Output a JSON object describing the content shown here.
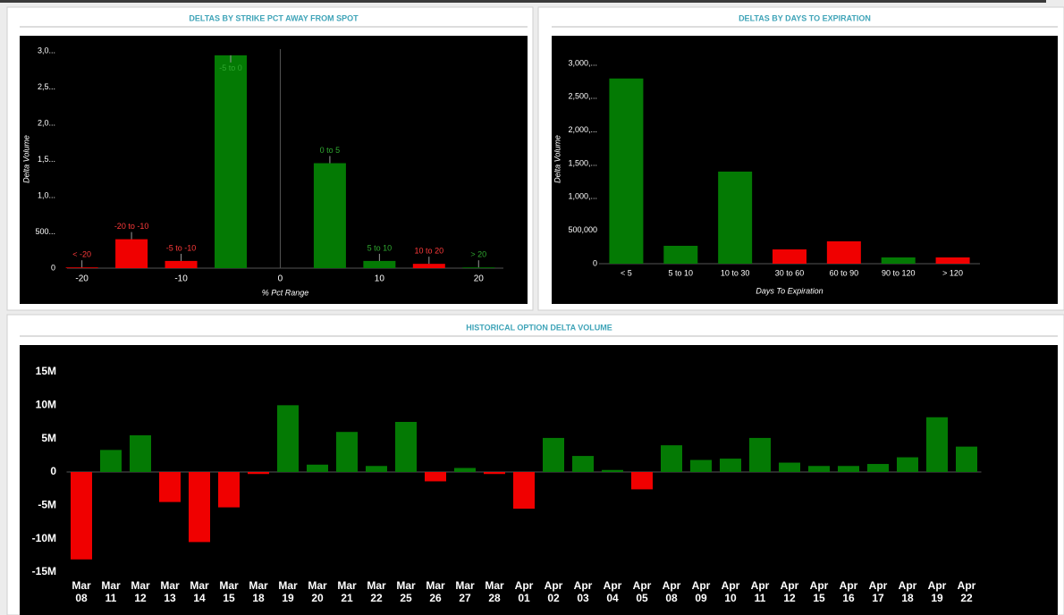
{
  "chart_data": [
    {
      "type": "bar",
      "title": "DELTAS BY STRIKE PCT AWAY FROM SPOT",
      "x_label": "% Pct Range",
      "y_label": "Delta Volume",
      "x": [
        -20,
        -15,
        -10,
        -5,
        5,
        10,
        15,
        20
      ],
      "point_labels": [
        "< -20",
        "-20 to -10",
        "-5 to -10",
        "-5 to 0",
        "0 to 5",
        "5 to 10",
        "10 to 20",
        "> 20"
      ],
      "values": [
        10,
        400,
        100,
        2940,
        1450,
        100,
        60,
        10
      ],
      "colors": [
        "#f00000",
        "#f00000",
        "#f00000",
        "#047a04",
        "#047a04",
        "#047a04",
        "#f00000",
        "#047a04"
      ],
      "xlim": [
        -21.5,
        22.5
      ],
      "xticks": [
        -20,
        -10,
        0,
        10,
        20
      ],
      "ylim": [
        0,
        3000
      ],
      "yticks": [
        0,
        {
          "value": 500,
          "label": "500..."
        },
        {
          "value": 1000,
          "label": "1,0..."
        },
        {
          "value": 1500,
          "label": "1,5..."
        },
        {
          "value": 2000,
          "label": "2,0..."
        },
        {
          "value": 2500,
          "label": "2,5..."
        },
        {
          "value": 3000,
          "label": "3,0..."
        }
      ],
      "grid": false
    },
    {
      "type": "bar",
      "title": "DELTAS BY DAYS TO EXPIRATION",
      "x_label": "Days To Expiration",
      "y_label": "Delta Volume",
      "categories": [
        "< 5",
        "5 to 10",
        "10 to 30",
        "30 to 60",
        "60 to 90",
        "90 to 120",
        "> 120"
      ],
      "values": [
        2775000,
        268000,
        1380000,
        214000,
        335000,
        94000,
        94000
      ],
      "colors": [
        "#047a04",
        "#047a04",
        "#047a04",
        "#f00000",
        "#f00000",
        "#047a04",
        "#f00000"
      ],
      "ylim": [
        0,
        3000000
      ],
      "yticks": [
        0,
        {
          "value": 500000,
          "label": "500,000"
        },
        {
          "value": 1000000,
          "label": "1,000,..."
        },
        {
          "value": 1500000,
          "label": "1,500,..."
        },
        {
          "value": 2000000,
          "label": "2,000,..."
        },
        {
          "value": 2500000,
          "label": "2,500,..."
        },
        {
          "value": 3000000,
          "label": "3,000,..."
        }
      ],
      "grid": false
    },
    {
      "type": "bar",
      "title": "HISTORICAL OPTION DELTA VOLUME",
      "categories": [
        "Mar 08",
        "Mar 11",
        "Mar 12",
        "Mar 13",
        "Mar 14",
        "Mar 15",
        "Mar 18",
        "Mar 19",
        "Mar 20",
        "Mar 21",
        "Mar 22",
        "Mar 25",
        "Mar 26",
        "Mar 27",
        "Mar 28",
        "Apr 01",
        "Apr 02",
        "Apr 03",
        "Apr 04",
        "Apr 05",
        "Apr 08",
        "Apr 09",
        "Apr 10",
        "Apr 11",
        "Apr 12",
        "Apr 15",
        "Apr 16",
        "Apr 17",
        "Apr 18",
        "Apr 19",
        "Apr 22"
      ],
      "values": [
        -13100000,
        3300000,
        5500000,
        -4500000,
        -10500000,
        -5300000,
        -300000,
        10000000,
        1100000,
        6000000,
        900000,
        7500000,
        -1400000,
        600000,
        -300000,
        -5500000,
        5100000,
        2400000,
        300000,
        -2600000,
        4000000,
        1800000,
        2000000,
        5100000,
        1400000,
        900000,
        900000,
        1200000,
        2200000,
        8200000,
        3800000
      ],
      "positive_color": "#047a04",
      "negative_color": "#f00000",
      "ylim": [
        -15000000,
        15000000
      ],
      "yticks": [
        {
          "value": -15000000,
          "label": "-15M"
        },
        {
          "value": -10000000,
          "label": "-10M"
        },
        {
          "value": -5000000,
          "label": "-5M"
        },
        0,
        {
          "value": 5000000,
          "label": "5M"
        },
        {
          "value": 10000000,
          "label": "10M"
        },
        {
          "value": 15000000,
          "label": "15M"
        }
      ],
      "grid": false
    }
  ]
}
